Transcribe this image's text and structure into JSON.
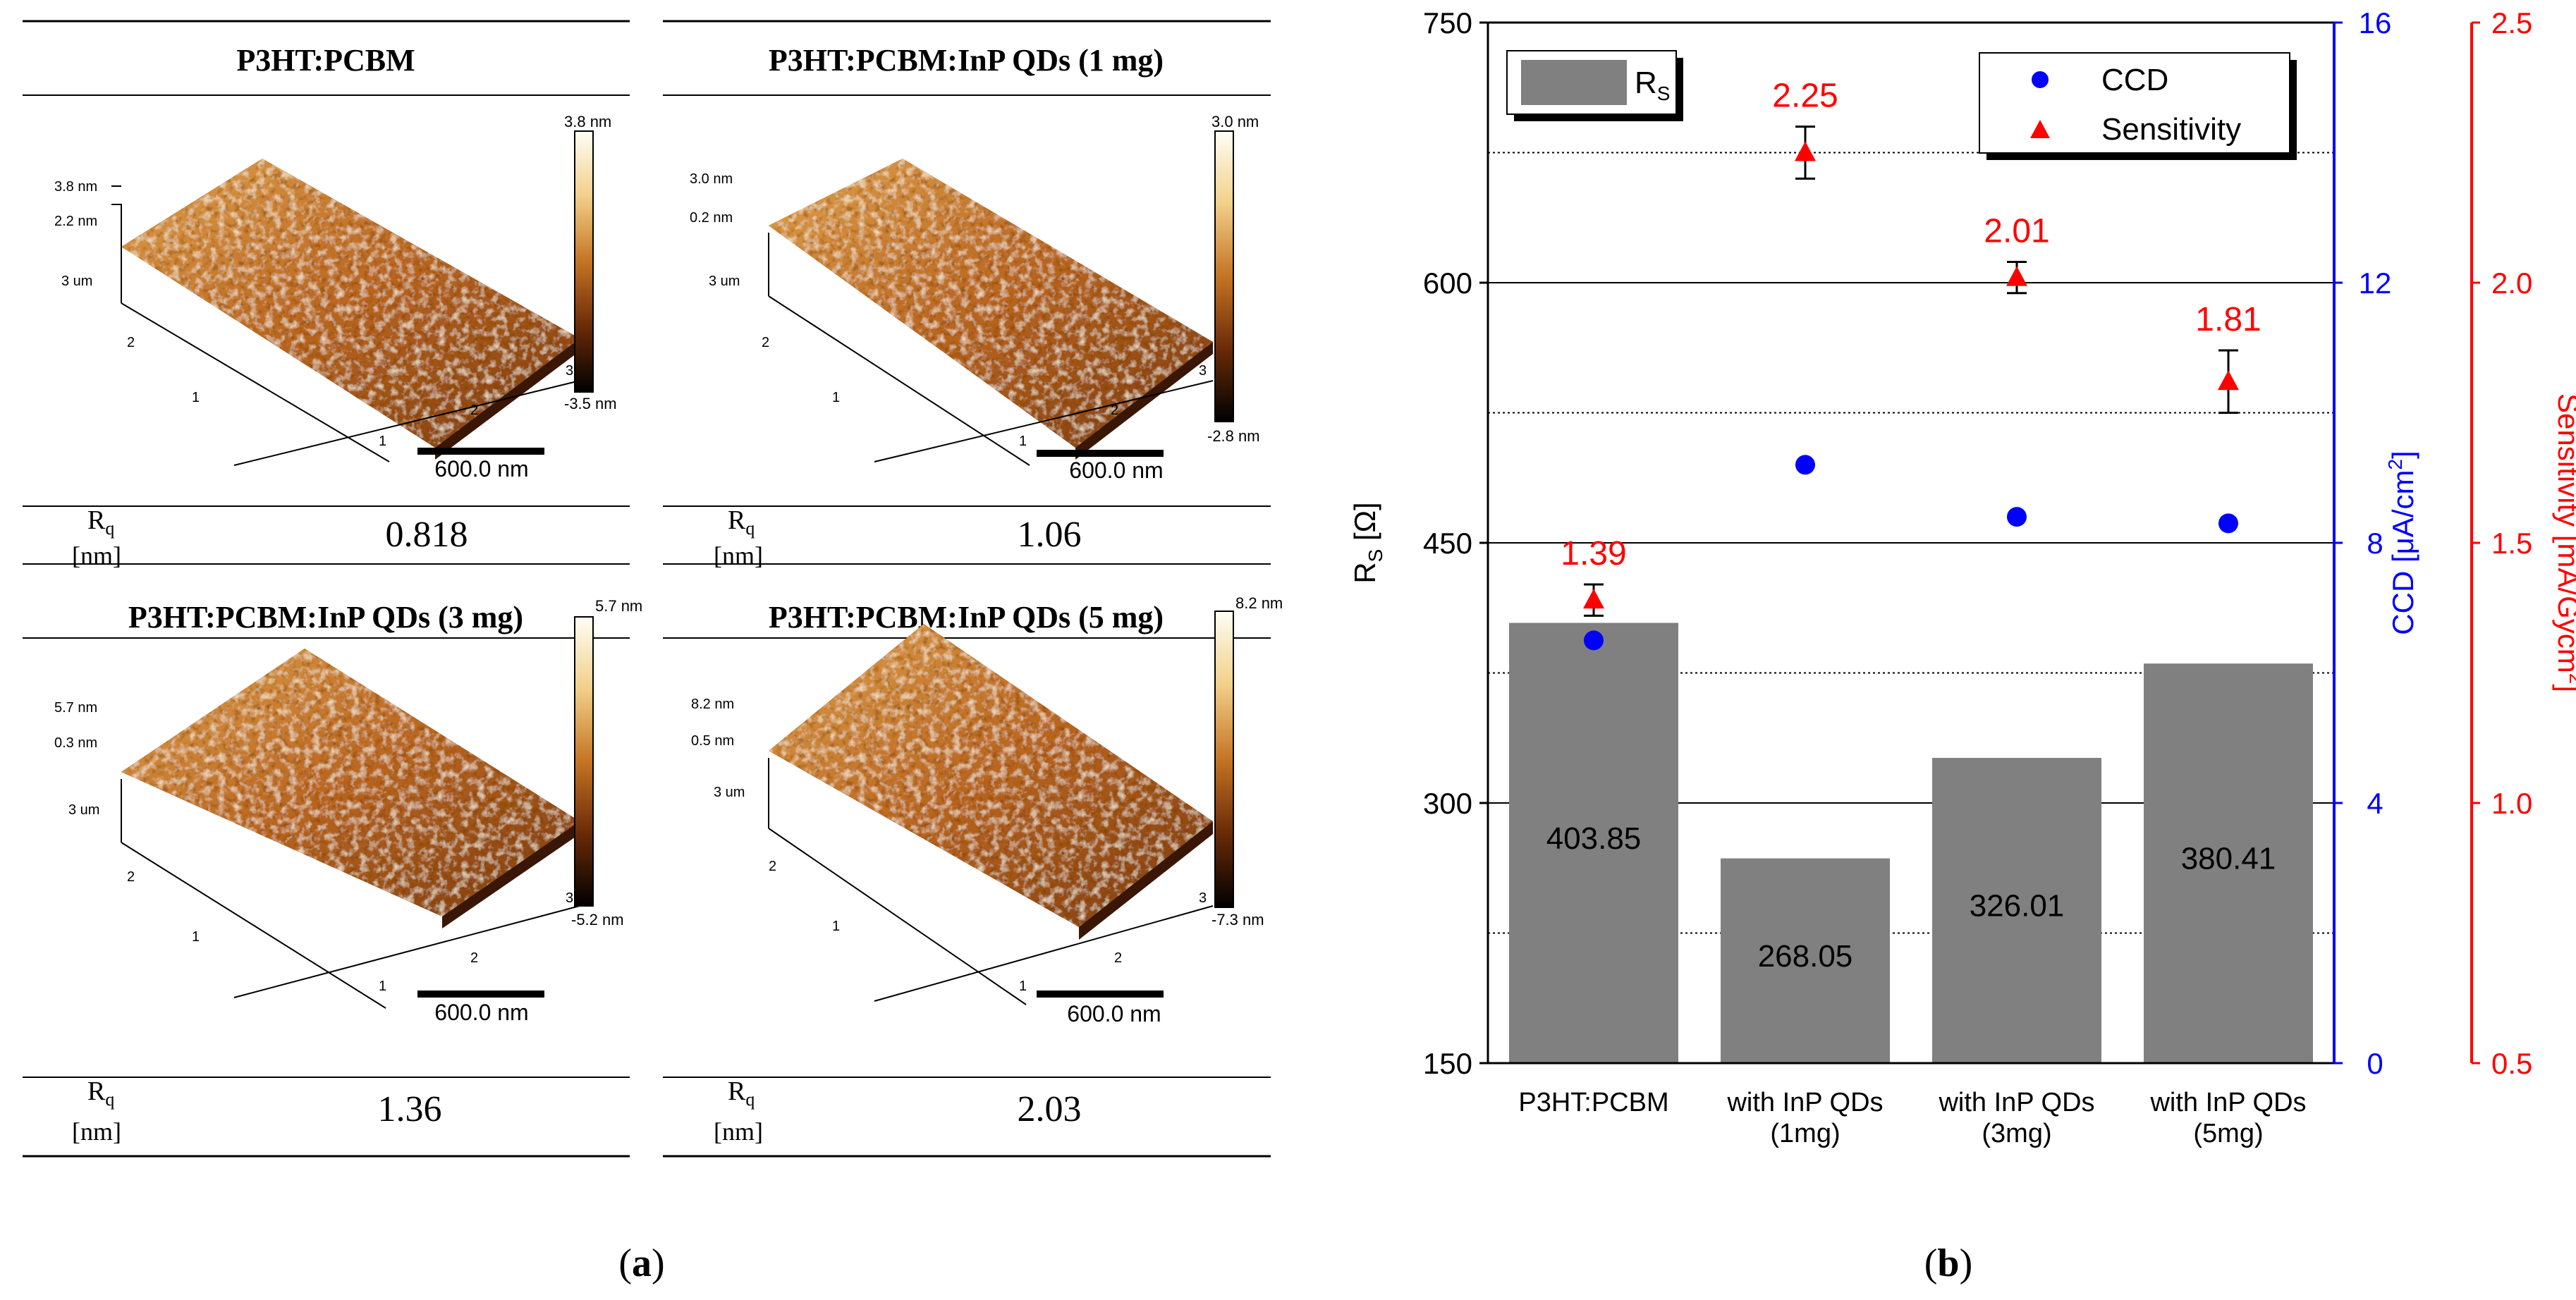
{
  "panel_a": {
    "label": "a",
    "scale_bar": "600.0 nm",
    "rq_label": "R",
    "rq_sub": "q",
    "rq_unit": "[nm]",
    "axis_um": "3 um",
    "tick_1": "1",
    "tick_2": "2",
    "tick_3": "3",
    "afm": [
      {
        "title": "P3HT:PCBM",
        "rq": "0.818",
        "z_max": "3.8 nm",
        "z_min": "-3.5 nm",
        "z_top": "3.8 nm",
        "z_mid": "2.2 nm"
      },
      {
        "title": "P3HT:PCBM:InP QDs (1 mg)",
        "rq": "1.06",
        "z_max": "3.0 nm",
        "z_min": "-2.8 nm",
        "z_top": "3.0 nm",
        "z_mid": "0.2 nm"
      },
      {
        "title": "P3HT:PCBM:InP QDs (3 mg)",
        "rq": "1.36",
        "z_max": "5.7 nm",
        "z_min": "-5.2 nm",
        "z_top": "5.7 nm",
        "z_mid": "0.3 nm"
      },
      {
        "title": "P3HT:PCBM:InP QDs (5 mg)",
        "rq": "2.03",
        "z_max": "8.2 nm",
        "z_min": "-7.3 nm",
        "z_top": "8.2 nm",
        "z_mid": "0.5 nm"
      }
    ]
  },
  "panel_b": {
    "label": "b"
  },
  "chart_data": {
    "type": "bar",
    "categories": [
      [
        "P3HT:PCBM"
      ],
      [
        "with InP QDs",
        "(1mg)"
      ],
      [
        "with InP QDs",
        "(3mg)"
      ],
      [
        "with InP QDs",
        "(5mg)"
      ]
    ],
    "series": [
      {
        "name": "R_S",
        "type": "bar",
        "axis": "left",
        "values": [
          403.85,
          268.05,
          326.01,
          380.41
        ],
        "labels": [
          "403.85",
          "268.05",
          "326.01",
          "380.41"
        ],
        "color": "#808080"
      },
      {
        "name": "CCD",
        "type": "scatter",
        "axis": "right1",
        "values": [
          6.5,
          9.2,
          8.4,
          8.3
        ],
        "color": "#0000ff"
      },
      {
        "name": "Sensitivity",
        "type": "scatter",
        "axis": "right2",
        "values": [
          1.39,
          2.25,
          2.01,
          1.81
        ],
        "errors": [
          0.03,
          0.05,
          0.03,
          0.06
        ],
        "labels": [
          "1.39",
          "2.25",
          "2.01",
          "1.81"
        ],
        "color": "#ff0000"
      }
    ],
    "axes": {
      "left": {
        "label_main": "R",
        "label_sub": "S",
        "label_unit": " [Ω]",
        "range": [
          150,
          750
        ],
        "ticks": [
          "150",
          "300",
          "450",
          "600",
          "750"
        ],
        "color": "#000000"
      },
      "right1": {
        "label": "CCD [μA/cm",
        "label_sup": "2",
        "label_end": "]",
        "range": [
          0,
          16
        ],
        "ticks": [
          "0",
          "4",
          "8",
          "12",
          "16"
        ],
        "color": "#0000ff"
      },
      "right2": {
        "label": "Sensitivity [mA/Gycm",
        "label_sup": "2",
        "label_end": "]",
        "range": [
          0.5,
          2.5
        ],
        "ticks": [
          "0.5",
          "1.0",
          "1.5",
          "2.0",
          "2.5"
        ],
        "color": "#ff0000"
      }
    },
    "grid": {
      "solid": [
        300,
        450,
        600
      ],
      "dotted": [
        225,
        375,
        525,
        675
      ]
    },
    "legend": {
      "bar_entry": {
        "main": "R",
        "sub": "S",
        "position": "top-left"
      },
      "marker_entries": [
        "CCD",
        "Sensitivity"
      ],
      "marker_position": "top-right"
    }
  }
}
